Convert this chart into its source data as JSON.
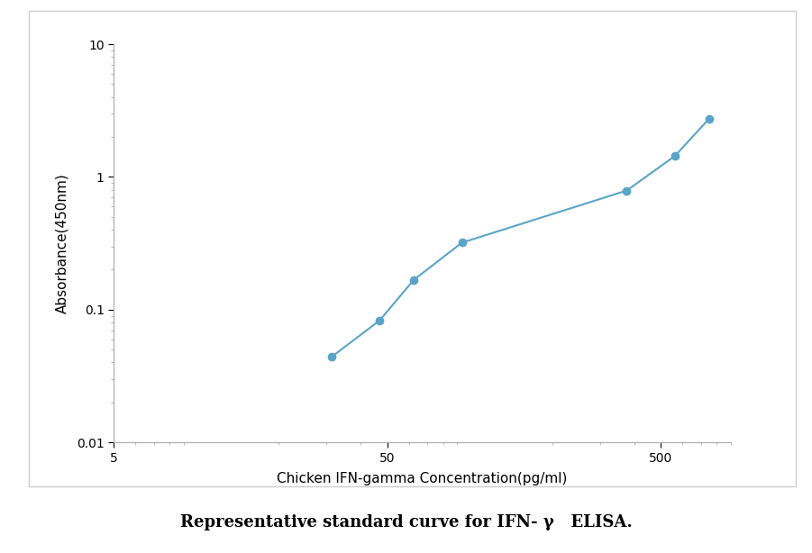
{
  "x_values": [
    31.25,
    46.875,
    62.5,
    93.75,
    375,
    562.5,
    750
  ],
  "y_values": [
    0.044,
    0.083,
    0.168,
    0.32,
    0.79,
    1.44,
    2.75
  ],
  "line_color": "#5BA4C8",
  "marker_color": "#5BA4C8",
  "marker_style": "o",
  "marker_size": 6,
  "line_width": 1.5,
  "xlabel": "Chicken IFN-gamma Concentration(pg/ml)",
  "ylabel": "Absorbance(450nm)",
  "xlim": [
    5,
    900
  ],
  "ylim": [
    0.01,
    10
  ],
  "x_ticks": [
    5,
    50,
    500
  ],
  "x_tick_labels": [
    "5",
    "50",
    "500"
  ],
  "y_ticks": [
    0.01,
    0.1,
    1,
    10
  ],
  "y_tick_labels": [
    "0.01",
    "0.1",
    "1",
    "10"
  ],
  "caption": "Representative standard curve for IFN- γ   ELISA.",
  "figure_bg": "#ffffff",
  "axes_bg": "#ffffff",
  "border_color": "#cccccc",
  "label_fontsize": 11,
  "tick_fontsize": 10,
  "caption_fontsize": 13
}
